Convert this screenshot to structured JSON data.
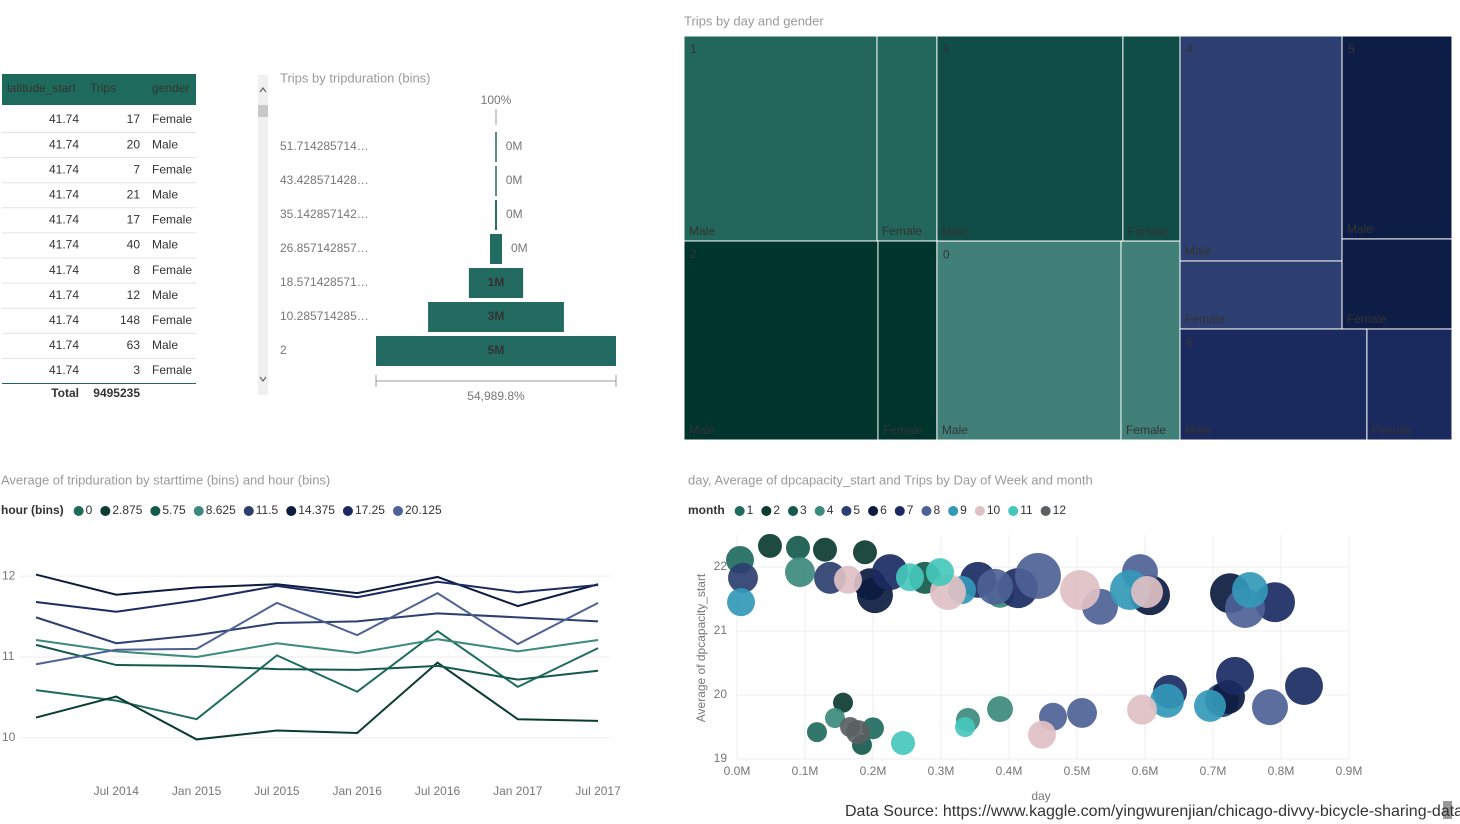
{
  "table": {
    "columns": [
      "latitude_start",
      "Trips",
      "gender"
    ],
    "rows": [
      [
        41.74,
        17,
        "Female"
      ],
      [
        41.74,
        20,
        "Male"
      ],
      [
        41.74,
        7,
        "Female"
      ],
      [
        41.74,
        21,
        "Male"
      ],
      [
        41.74,
        17,
        "Female"
      ],
      [
        41.74,
        40,
        "Male"
      ],
      [
        41.74,
        8,
        "Female"
      ],
      [
        41.74,
        12,
        "Male"
      ],
      [
        41.74,
        148,
        "Female"
      ],
      [
        41.74,
        63,
        "Male"
      ],
      [
        41.74,
        3,
        "Female"
      ]
    ],
    "total": [
      "Total",
      9495235
    ]
  },
  "chart_data": [
    {
      "type": "funnel",
      "title": "Trips by tripduration (bins)",
      "categories": [
        "51.714285714…",
        "43.428571428…",
        "35.142857142…",
        "26.857142857…",
        "18.571428571…",
        "10.285714285…",
        "2"
      ],
      "values": [
        0.00909,
        0.02,
        0.04,
        0.25,
        1.13,
        2.83,
        5.0
      ],
      "value_labels": [
        "0M",
        "0M",
        "0M",
        "0M",
        "1M",
        "3M",
        "5M"
      ],
      "top_label": "100%",
      "bottom_label": "54,989.8%",
      "color": "#236b60"
    },
    {
      "type": "treemap",
      "title": "Trips by day and gender",
      "subcategories": [
        "Male",
        "Female"
      ],
      "groups": [
        {
          "name": "1",
          "color": "#23665c",
          "values": [
            1210000,
            376000
          ]
        },
        {
          "name": "2",
          "color": "#00352d",
          "values": [
            1181000,
            359000
          ]
        },
        {
          "name": "3",
          "color": "#114d47",
          "values": [
            1167000,
            358000
          ]
        },
        {
          "name": "0",
          "color": "#418078",
          "values": [
            1120000,
            359000
          ]
        },
        {
          "name": "4",
          "color": "#2c3f70",
          "values": [
            1115000,
            337000
          ]
        },
        {
          "name": "5",
          "color": "#0d1d45",
          "values": [
            683000,
            303000
          ]
        },
        {
          "name": "6",
          "color": "#1b2a5e",
          "values": [
            635000,
            289000
          ]
        }
      ]
    },
    {
      "type": "line",
      "title": "Average of tripduration by starttime (bins) and hour (bins)",
      "legend_title": "hour (bins)",
      "categories": [
        null,
        "Jul 2014",
        "Jan 2015",
        "Jul 2015",
        "Jan 2016",
        "Jul 2016",
        "Jan 2017",
        "Jul 2017"
      ],
      "ylim": [
        9.75,
        12.2
      ],
      "yticks": [
        10,
        11,
        12
      ],
      "grid": true,
      "series": [
        {
          "name": "0",
          "color": "#1f6b5e",
          "values": [
            10.59,
            10.46,
            10.23,
            11.02,
            10.57,
            11.32,
            10.63,
            11.11
          ]
        },
        {
          "name": "2.875",
          "color": "#0b3b31",
          "values": [
            10.25,
            10.51,
            9.98,
            10.09,
            10.06,
            10.93,
            10.23,
            10.21
          ]
        },
        {
          "name": "5.75",
          "color": "#145a4c",
          "values": [
            11.15,
            10.9,
            10.89,
            10.85,
            10.84,
            10.89,
            10.72,
            10.83
          ]
        },
        {
          "name": "8.625",
          "color": "#3c8a7c",
          "values": [
            11.21,
            11.07,
            11.0,
            11.17,
            11.05,
            11.22,
            11.07,
            11.21
          ]
        },
        {
          "name": "11.5",
          "color": "#2c3f70",
          "values": [
            11.49,
            11.17,
            11.27,
            11.42,
            11.44,
            11.54,
            11.49,
            11.44
          ]
        },
        {
          "name": "14.375",
          "color": "#0c1b40",
          "values": [
            12.02,
            11.77,
            11.86,
            11.9,
            11.79,
            11.99,
            11.63,
            11.9
          ]
        },
        {
          "name": "17.25",
          "color": "#1b2b62",
          "values": [
            11.68,
            11.56,
            11.7,
            11.88,
            11.74,
            11.93,
            11.8,
            11.89
          ]
        },
        {
          "name": "20.125",
          "color": "#4e6296",
          "values": [
            10.91,
            11.09,
            11.1,
            11.67,
            11.27,
            11.79,
            11.16,
            11.67
          ]
        }
      ]
    },
    {
      "type": "scatter",
      "title": "day, Average of dpcapacity_start and Trips by Day of Week and month",
      "legend_title": "month",
      "x_label": "day",
      "y_label": "Average of dpcapacity_start",
      "xlim": [
        0,
        900000
      ],
      "xticks": [
        {
          "value": 0,
          "label": "0.0M"
        },
        {
          "value": 100000,
          "label": "0.1M"
        },
        {
          "value": 200000,
          "label": "0.2M"
        },
        {
          "value": 300000,
          "label": "0.3M"
        },
        {
          "value": 400000,
          "label": "0.4M"
        },
        {
          "value": 500000,
          "label": "0.5M"
        },
        {
          "value": 600000,
          "label": "0.6M"
        },
        {
          "value": 700000,
          "label": "0.7M"
        },
        {
          "value": 800000,
          "label": "0.8M"
        },
        {
          "value": 900000,
          "label": "0.9M"
        }
      ],
      "ylim": [
        19,
        22.5
      ],
      "yticks": [
        19,
        20,
        21,
        22
      ],
      "grid": true,
      "series": [
        {
          "name": "1",
          "color": "#1f6b5e",
          "x": [
            4400,
            117600,
            200000
          ],
          "values": [
            22.11,
            19.42,
            19.48
          ],
          "sizes": [
            49000,
            25000,
            30000
          ]
        },
        {
          "name": "2",
          "color": "#0b3b31",
          "x": [
            48500,
            129400,
            188200,
            155900
          ],
          "values": [
            22.33,
            22.27,
            22.23,
            19.88
          ],
          "sizes": [
            36000,
            36000,
            36000,
            25000
          ]
        },
        {
          "name": "3",
          "color": "#145a4c",
          "x": [
            89700,
            276500,
            183800
          ],
          "values": [
            22.3,
            21.83,
            19.22
          ],
          "sizes": [
            36000,
            64000,
            25000
          ]
        },
        {
          "name": "4",
          "color": "#3c8a7c",
          "x": [
            92600,
            386800,
            144100,
            339700,
            386800
          ],
          "values": [
            21.92,
            21.58,
            19.64,
            19.61,
            19.78
          ],
          "sizes": [
            56000,
            49000,
            25000,
            36000,
            42000
          ]
        },
        {
          "name": "5",
          "color": "#2c3f70",
          "x": [
            8800,
            136800,
            713200
          ],
          "values": [
            21.83,
            21.83,
            19.92
          ],
          "sizes": [
            56000,
            64000,
            72000
          ]
        },
        {
          "name": "6",
          "color": "#0c1b40",
          "x": [
            195600,
            202900,
            607400,
            725000,
            722100
          ],
          "values": [
            21.73,
            21.56,
            21.56,
            21.59,
            19.97
          ],
          "sizes": [
            64000,
            81000,
            100000,
            100000,
            72000
          ]
        },
        {
          "name": "7",
          "color": "#1b2b62",
          "x": [
            225000,
            354400,
            413200,
            791200,
            636800,
            732400,
            833800
          ],
          "values": [
            21.92,
            21.8,
            21.67,
            21.45,
            20.05,
            20.3,
            20.14
          ],
          "sizes": [
            81000,
            81000,
            100000,
            100000,
            72000,
            90000,
            90000
          ]
        },
        {
          "name": "8",
          "color": "#4e6296",
          "x": [
            379400,
            442600,
            533800,
            592600,
            747100,
            464700,
            507400,
            783800
          ],
          "values": [
            21.69,
            21.86,
            21.38,
            21.92,
            21.36,
            19.66,
            19.72,
            19.81
          ],
          "sizes": [
            81000,
            132000,
            81000,
            81000,
            100000,
            49000,
            56000,
            81000
          ]
        },
        {
          "name": "9",
          "color": "#3399b8",
          "x": [
            5900,
            330900,
            577900,
            754400,
            632400,
            695600
          ],
          "values": [
            21.45,
            21.64,
            21.64,
            21.64,
            19.91,
            19.83
          ],
          "sizes": [
            49000,
            49000,
            100000,
            81000,
            72000,
            64000
          ]
        },
        {
          "name": "10",
          "color": "#e0c0c4",
          "x": [
            163200,
            310300,
            504400,
            602900,
            448500,
            595600
          ],
          "values": [
            21.8,
            21.61,
            21.64,
            21.61,
            19.38,
            19.77
          ],
          "sizes": [
            49000,
            81000,
            100000,
            64000,
            49000,
            56000
          ]
        },
        {
          "name": "11",
          "color": "#45c8bc",
          "x": [
            254400,
            298500,
            244100,
            335300
          ],
          "values": [
            21.84,
            21.92,
            19.25,
            19.5
          ],
          "sizes": [
            49000,
            49000,
            36000,
            25000
          ]
        },
        {
          "name": "12",
          "color": "#5a6062",
          "x": [
            166200,
            177900
          ],
          "values": [
            19.5,
            19.42
          ],
          "sizes": [
            25000,
            36000
          ]
        }
      ]
    }
  ],
  "footer": "Data Source: https://www.kaggle.com/yingwurenjian/chicago-divvy-bicycle-sharing-data"
}
